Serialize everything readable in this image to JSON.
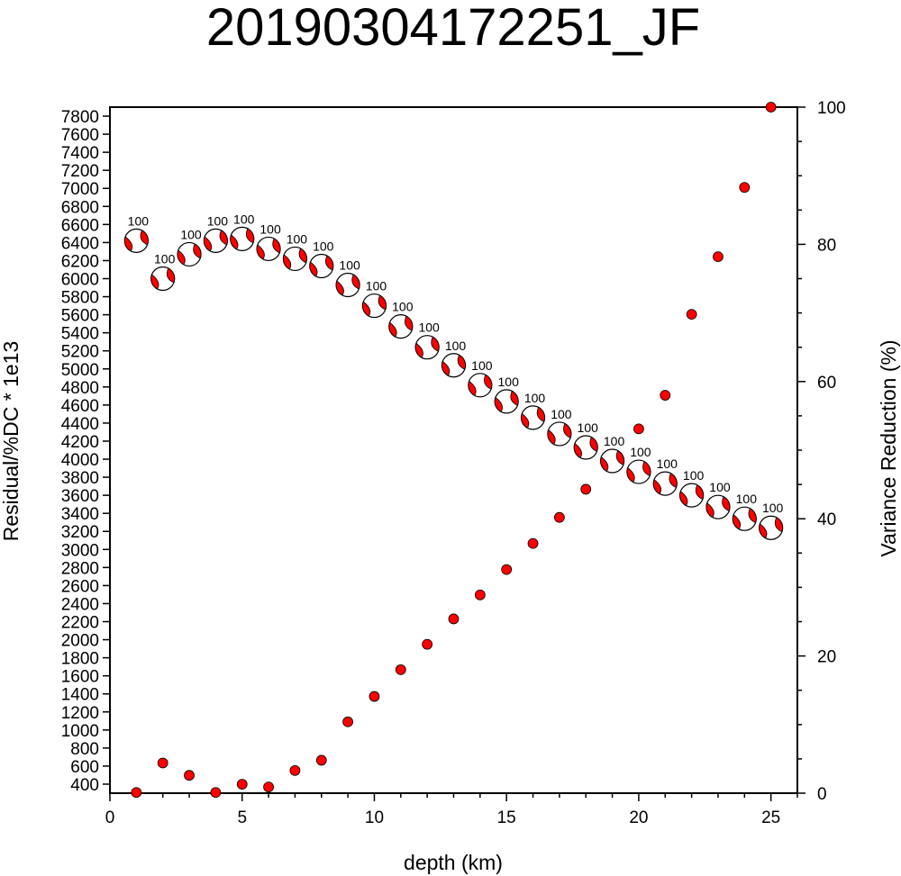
{
  "chart_data": {
    "type": "scatter",
    "title": "20190304172251_JF",
    "xlabel": "depth (km)",
    "ylabel_left": "Residual/%DC * 1e13",
    "ylabel_right": "Variance Reduction (%)",
    "xlim": [
      0,
      26
    ],
    "ylim_left": [
      300,
      7900
    ],
    "ylim_right": [
      0,
      100
    ],
    "x_ticks": [
      0,
      5,
      10,
      15,
      20,
      25
    ],
    "y_left_ticks": [
      400,
      600,
      800,
      1000,
      1200,
      1400,
      1600,
      1800,
      2000,
      2200,
      2400,
      2600,
      2800,
      3000,
      3200,
      3400,
      3600,
      3800,
      4000,
      4200,
      4400,
      4600,
      4800,
      5000,
      5200,
      5400,
      5600,
      5800,
      6000,
      6200,
      6400,
      6600,
      6800,
      7000,
      7200,
      7400,
      7600,
      7800
    ],
    "y_right_ticks": [
      0,
      20,
      40,
      60,
      80,
      100
    ],
    "grid": false,
    "colors": {
      "fill": "#ff0000",
      "outline": "#000000",
      "background": "#ffffff"
    },
    "series": [
      {
        "marker": "beachball",
        "axis": "left",
        "x": [
          1,
          2,
          3,
          4,
          5,
          6,
          7,
          8,
          9,
          10,
          11,
          12,
          13,
          14,
          15,
          16,
          17,
          18,
          19,
          20,
          21,
          22,
          23,
          24,
          25
        ],
        "y": [
          6420,
          6000,
          6270,
          6420,
          6440,
          6330,
          6220,
          6140,
          5930,
          5700,
          5470,
          5240,
          5040,
          4820,
          4640,
          4460,
          4280,
          4130,
          3980,
          3860,
          3730,
          3600,
          3470,
          3340,
          3240
        ],
        "labels": [
          "100",
          "100",
          "100",
          "100",
          "100",
          "100",
          "100",
          "100",
          "100",
          "100",
          "100",
          "100",
          "100",
          "100",
          "100",
          "100",
          "100",
          "100",
          "100",
          "100",
          "100",
          "100",
          "100",
          "100",
          "100"
        ]
      },
      {
        "marker": "dot",
        "axis": "right",
        "x": [
          1,
          2,
          3,
          4,
          5,
          6,
          7,
          8,
          9,
          10,
          11,
          12,
          13,
          14,
          15,
          16,
          17,
          18,
          19,
          20,
          21,
          22,
          23,
          24,
          25
        ],
        "y": [
          0.1,
          4.4,
          2.6,
          0.1,
          1.3,
          0.9,
          3.3,
          4.8,
          10.4,
          14.1,
          18.0,
          21.7,
          25.4,
          28.9,
          32.6,
          36.4,
          40.2,
          44.3,
          48.4,
          53.1,
          58.0,
          69.8,
          78.2,
          88.3,
          100.0
        ]
      }
    ]
  }
}
